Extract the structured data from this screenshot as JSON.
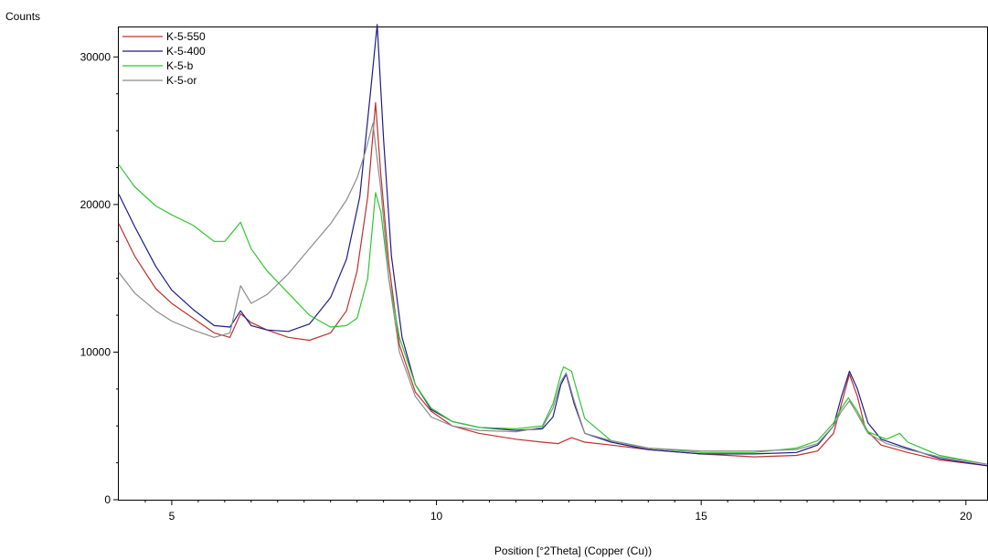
{
  "chart_data": {
    "type": "line",
    "xlabel": "Position [°2Theta] (Copper (Cu))",
    "ylabel": "Counts",
    "xlim": [
      4.0,
      20.4
    ],
    "ylim": [
      0,
      32000
    ],
    "xticks_major": [
      5,
      10,
      15,
      20
    ],
    "xticks_minor": [
      4.5,
      5.5,
      6,
      6.5,
      7,
      7.5,
      8,
      8.5,
      9,
      9.5,
      10.5,
      11,
      11.5,
      12,
      12.5,
      13,
      13.5,
      14,
      14.5,
      15.5,
      16,
      16.5,
      17,
      17.5,
      18,
      18.5,
      19,
      19.5
    ],
    "yticks_major": [
      0,
      10000,
      20000,
      30000
    ],
    "yticks_minor": [
      2500,
      5000,
      7500,
      12500,
      15000,
      17500,
      22500,
      25000,
      27500
    ],
    "grid": false,
    "legend_position": "top-left",
    "series": [
      {
        "name": "K-5-550",
        "color": "#c0302a",
        "points": [
          [
            4.0,
            18700
          ],
          [
            4.3,
            16500
          ],
          [
            4.7,
            14300
          ],
          [
            5.0,
            13300
          ],
          [
            5.4,
            12300
          ],
          [
            5.8,
            11300
          ],
          [
            6.1,
            11000
          ],
          [
            6.3,
            12600
          ],
          [
            6.5,
            12000
          ],
          [
            6.8,
            11500
          ],
          [
            7.2,
            11000
          ],
          [
            7.6,
            10800
          ],
          [
            8.0,
            11300
          ],
          [
            8.3,
            12800
          ],
          [
            8.5,
            15500
          ],
          [
            8.7,
            20500
          ],
          [
            8.85,
            26900
          ],
          [
            8.95,
            22000
          ],
          [
            9.1,
            16000
          ],
          [
            9.3,
            10500
          ],
          [
            9.6,
            7300
          ],
          [
            9.9,
            6000
          ],
          [
            10.3,
            5000
          ],
          [
            10.8,
            4500
          ],
          [
            11.5,
            4100
          ],
          [
            12.0,
            3900
          ],
          [
            12.3,
            3800
          ],
          [
            12.55,
            4200
          ],
          [
            12.8,
            3900
          ],
          [
            13.3,
            3700
          ],
          [
            14.0,
            3400
          ],
          [
            15.0,
            3100
          ],
          [
            16.0,
            2900
          ],
          [
            16.8,
            3000
          ],
          [
            17.2,
            3300
          ],
          [
            17.5,
            4500
          ],
          [
            17.65,
            6500
          ],
          [
            17.8,
            8500
          ],
          [
            17.95,
            7000
          ],
          [
            18.1,
            4800
          ],
          [
            18.4,
            3700
          ],
          [
            18.9,
            3200
          ],
          [
            19.5,
            2700
          ],
          [
            20.4,
            2300
          ]
        ]
      },
      {
        "name": "K-5-400",
        "color": "#1c1c8c",
        "points": [
          [
            4.0,
            20700
          ],
          [
            4.3,
            18500
          ],
          [
            4.7,
            15800
          ],
          [
            5.0,
            14200
          ],
          [
            5.4,
            12900
          ],
          [
            5.8,
            11800
          ],
          [
            6.1,
            11700
          ],
          [
            6.3,
            12800
          ],
          [
            6.5,
            11800
          ],
          [
            6.8,
            11500
          ],
          [
            7.2,
            11400
          ],
          [
            7.6,
            11900
          ],
          [
            8.0,
            13700
          ],
          [
            8.3,
            16300
          ],
          [
            8.55,
            20500
          ],
          [
            8.75,
            27500
          ],
          [
            8.88,
            32200
          ],
          [
            9.0,
            24500
          ],
          [
            9.15,
            16500
          ],
          [
            9.35,
            11000
          ],
          [
            9.6,
            7800
          ],
          [
            9.9,
            6100
          ],
          [
            10.3,
            5300
          ],
          [
            10.8,
            4900
          ],
          [
            11.5,
            4700
          ],
          [
            12.0,
            4800
          ],
          [
            12.2,
            5600
          ],
          [
            12.35,
            7800
          ],
          [
            12.45,
            8500
          ],
          [
            12.6,
            6500
          ],
          [
            12.8,
            4500
          ],
          [
            13.3,
            3900
          ],
          [
            14.0,
            3400
          ],
          [
            15.0,
            3100
          ],
          [
            16.0,
            3100
          ],
          [
            16.8,
            3200
          ],
          [
            17.2,
            3700
          ],
          [
            17.5,
            5000
          ],
          [
            17.65,
            7000
          ],
          [
            17.8,
            8700
          ],
          [
            17.95,
            7500
          ],
          [
            18.15,
            5200
          ],
          [
            18.4,
            4100
          ],
          [
            18.8,
            3600
          ],
          [
            19.5,
            2800
          ],
          [
            20.4,
            2300
          ]
        ]
      },
      {
        "name": "K-5-b",
        "color": "#2ec82e",
        "points": [
          [
            4.0,
            22700
          ],
          [
            4.3,
            21200
          ],
          [
            4.7,
            19900
          ],
          [
            5.0,
            19300
          ],
          [
            5.4,
            18600
          ],
          [
            5.8,
            17500
          ],
          [
            6.0,
            17500
          ],
          [
            6.3,
            18800
          ],
          [
            6.5,
            17000
          ],
          [
            6.8,
            15500
          ],
          [
            7.2,
            14000
          ],
          [
            7.6,
            12500
          ],
          [
            8.0,
            11700
          ],
          [
            8.3,
            11800
          ],
          [
            8.5,
            12300
          ],
          [
            8.7,
            15000
          ],
          [
            8.85,
            20800
          ],
          [
            8.95,
            19500
          ],
          [
            9.1,
            15000
          ],
          [
            9.3,
            11000
          ],
          [
            9.6,
            7800
          ],
          [
            9.9,
            6200
          ],
          [
            10.3,
            5300
          ],
          [
            10.8,
            4900
          ],
          [
            11.5,
            4800
          ],
          [
            12.0,
            5000
          ],
          [
            12.2,
            6500
          ],
          [
            12.35,
            8500
          ],
          [
            12.4,
            9000
          ],
          [
            12.55,
            8700
          ],
          [
            12.8,
            5500
          ],
          [
            13.3,
            4000
          ],
          [
            14.0,
            3500
          ],
          [
            15.0,
            3200
          ],
          [
            16.0,
            3200
          ],
          [
            16.8,
            3500
          ],
          [
            17.2,
            4000
          ],
          [
            17.5,
            5200
          ],
          [
            17.65,
            6200
          ],
          [
            17.78,
            6900
          ],
          [
            17.95,
            6000
          ],
          [
            18.15,
            4600
          ],
          [
            18.5,
            4100
          ],
          [
            18.75,
            4500
          ],
          [
            18.9,
            3900
          ],
          [
            19.5,
            3000
          ],
          [
            20.4,
            2400
          ]
        ]
      },
      {
        "name": "K-5-or",
        "color": "#8c8c8c",
        "points": [
          [
            4.0,
            15400
          ],
          [
            4.3,
            14000
          ],
          [
            4.7,
            12800
          ],
          [
            5.0,
            12100
          ],
          [
            5.4,
            11500
          ],
          [
            5.8,
            11000
          ],
          [
            6.1,
            11300
          ],
          [
            6.3,
            14500
          ],
          [
            6.5,
            13300
          ],
          [
            6.8,
            13900
          ],
          [
            7.2,
            15300
          ],
          [
            7.6,
            17000
          ],
          [
            8.0,
            18700
          ],
          [
            8.3,
            20300
          ],
          [
            8.5,
            21800
          ],
          [
            8.65,
            23500
          ],
          [
            8.8,
            25500
          ],
          [
            8.95,
            21000
          ],
          [
            9.1,
            15000
          ],
          [
            9.3,
            10000
          ],
          [
            9.6,
            7000
          ],
          [
            9.9,
            5600
          ],
          [
            10.3,
            5000
          ],
          [
            10.8,
            4700
          ],
          [
            11.5,
            4600
          ],
          [
            12.0,
            4900
          ],
          [
            12.2,
            6200
          ],
          [
            12.35,
            8000
          ],
          [
            12.45,
            8600
          ],
          [
            12.6,
            6700
          ],
          [
            12.8,
            4500
          ],
          [
            13.3,
            4000
          ],
          [
            14.0,
            3500
          ],
          [
            15.0,
            3300
          ],
          [
            16.0,
            3300
          ],
          [
            16.8,
            3400
          ],
          [
            17.2,
            3800
          ],
          [
            17.5,
            5000
          ],
          [
            17.65,
            6000
          ],
          [
            17.8,
            6700
          ],
          [
            17.95,
            5800
          ],
          [
            18.15,
            4500
          ],
          [
            18.5,
            3800
          ],
          [
            18.9,
            3400
          ],
          [
            19.5,
            2900
          ],
          [
            20.4,
            2400
          ]
        ]
      }
    ]
  }
}
